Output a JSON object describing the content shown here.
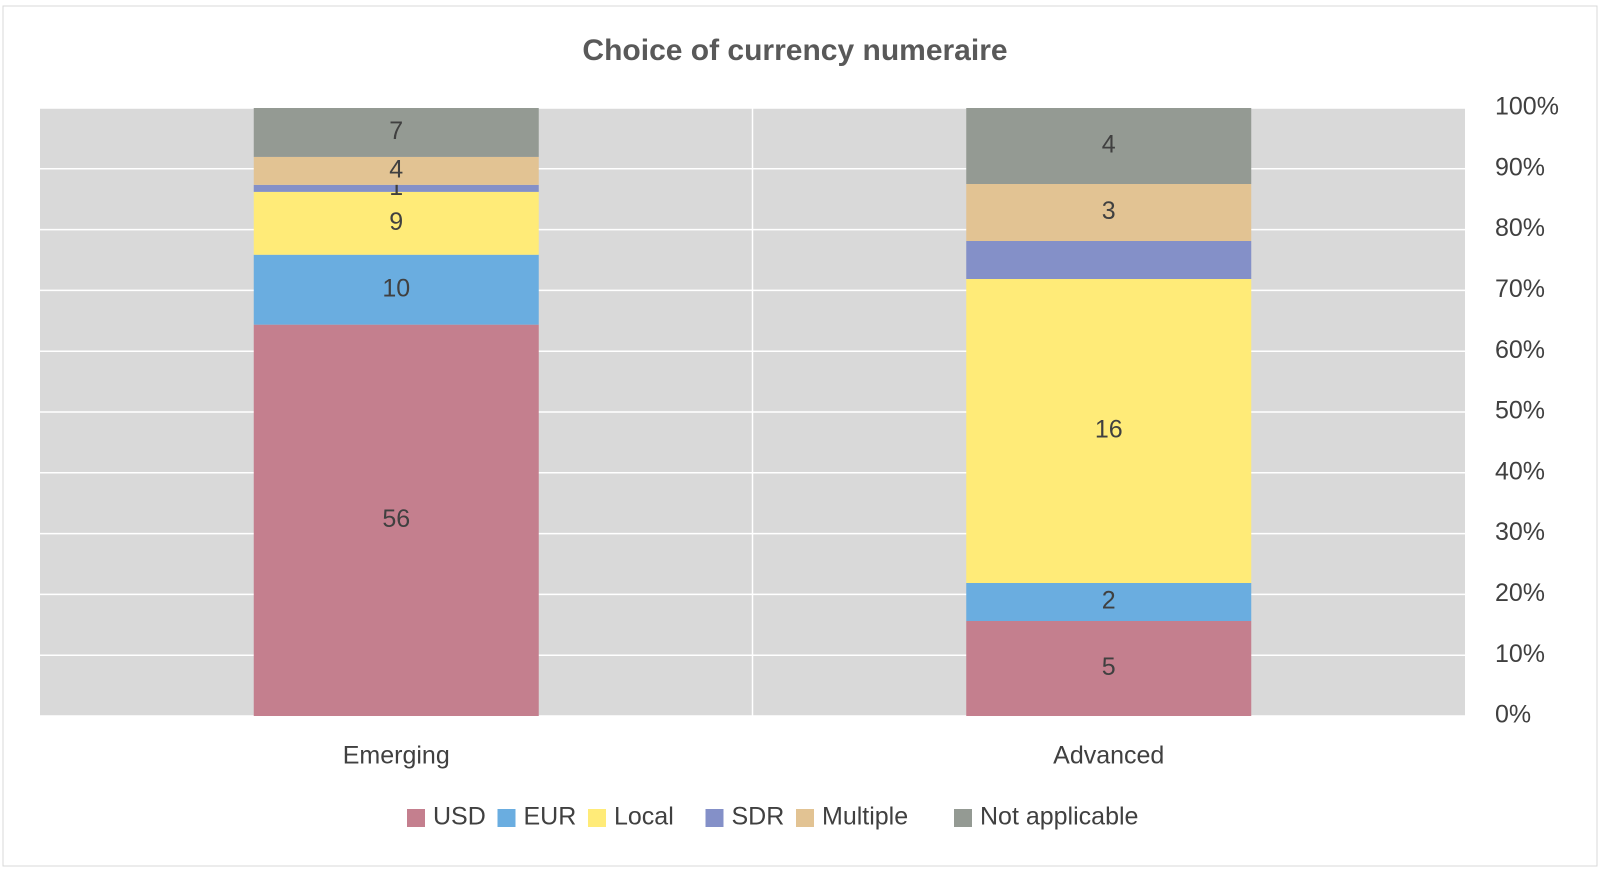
{
  "chart_data": {
    "type": "bar",
    "stacking": "percent",
    "title": "Choice of currency numeraire",
    "categories": [
      "Emerging",
      "Advanced"
    ],
    "series": [
      {
        "name": "USD",
        "color": "#c47f8e",
        "values": [
          56,
          5
        ]
      },
      {
        "name": "EUR",
        "color": "#6aade0",
        "values": [
          10,
          2
        ]
      },
      {
        "name": "Local",
        "color": "#ffeb78",
        "values": [
          9,
          16
        ]
      },
      {
        "name": "SDR",
        "color": "#8490c8",
        "values": [
          1,
          2
        ],
        "value_labels": [
          "1",
          null
        ]
      },
      {
        "name": "Multiple",
        "color": "#e2c393",
        "values": [
          4,
          3
        ]
      },
      {
        "name": "Not applicable",
        "color": "#949a93",
        "values": [
          7,
          4
        ]
      }
    ],
    "ylim": [
      0,
      100
    ],
    "yticks": [
      {
        "value": 0,
        "label": "0%"
      },
      {
        "value": 10,
        "label": "10%"
      },
      {
        "value": 20,
        "label": "20%"
      },
      {
        "value": 30,
        "label": "30%"
      },
      {
        "value": 40,
        "label": "40%"
      },
      {
        "value": 50,
        "label": "50%"
      },
      {
        "value": 60,
        "label": "60%"
      },
      {
        "value": 70,
        "label": "70%"
      },
      {
        "value": 80,
        "label": "80%"
      },
      {
        "value": 90,
        "label": "90%"
      },
      {
        "value": 100,
        "label": "100%"
      }
    ],
    "grid": true,
    "legend": "bottom"
  }
}
